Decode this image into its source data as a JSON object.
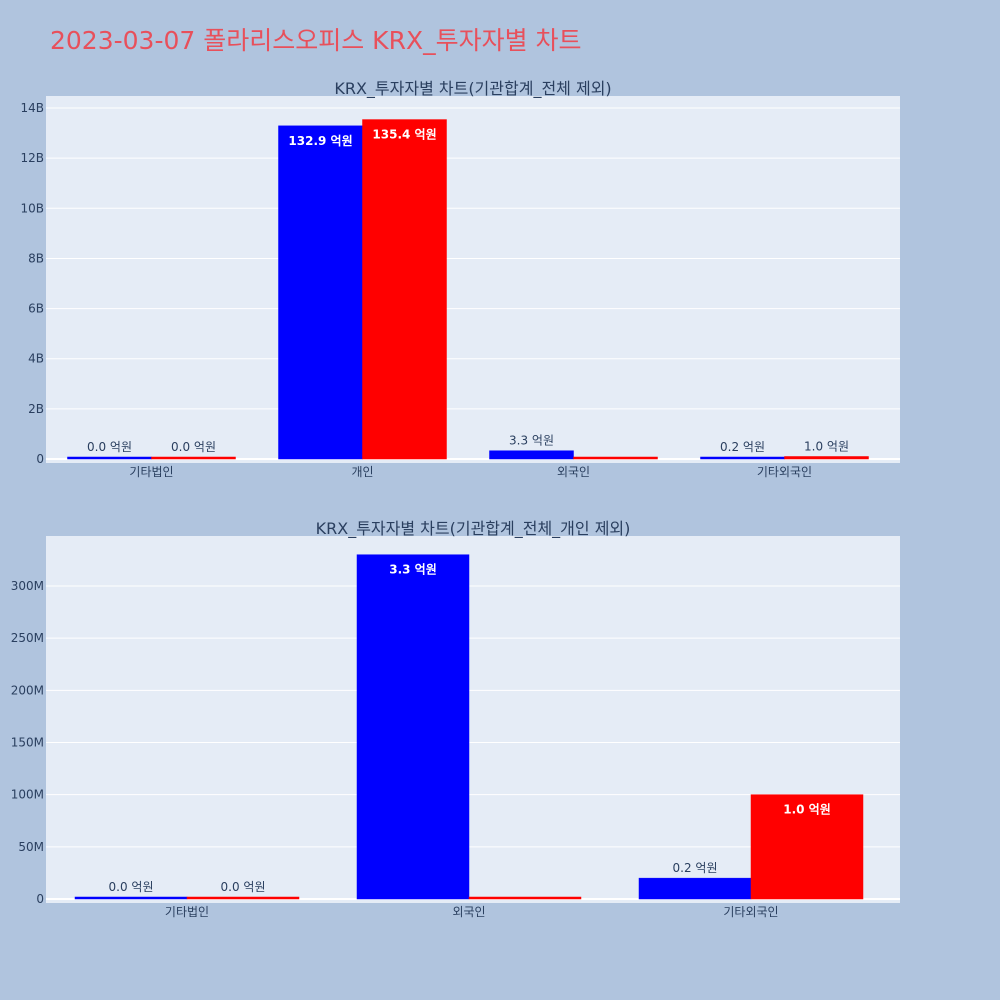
{
  "title": "2023-03-07 폴라리스오피스 KRX_투자자별 차트",
  "colors": {
    "background": "#b0c4de",
    "plot_bg": "#e5ecf6",
    "title": "#e8505b",
    "text": "#2a3f5f",
    "grid": "#ffffff",
    "series_a": "#0000ff",
    "series_b": "#ff0000"
  },
  "chart_data": [
    {
      "type": "bar",
      "title": "KRX_투자자별 차트(기관합계_전체 제외)",
      "categories": [
        "기타법인",
        "개인",
        "외국인",
        "기타외국인"
      ],
      "series": [
        {
          "color": "#0000ff",
          "values": [
            0,
            13290000000,
            330000000,
            20000000
          ],
          "labels": [
            "0.0 억원",
            "132.9 억원",
            "3.3 억원",
            "0.2 억원"
          ]
        },
        {
          "color": "#ff0000",
          "values": [
            0,
            13540000000,
            0,
            100000000
          ],
          "labels": [
            "0.0 억원",
            "135.4 억원",
            "",
            "1.0 억원"
          ]
        }
      ],
      "ylim": [
        0,
        14400000000
      ],
      "yticks": [
        0,
        2000000000,
        4000000000,
        6000000000,
        8000000000,
        10000000000,
        12000000000,
        14000000000
      ],
      "ytick_labels": [
        "0",
        "2B",
        "4B",
        "6B",
        "8B",
        "10B",
        "12B",
        "14B"
      ],
      "grid": true
    },
    {
      "type": "bar",
      "title": "KRX_투자자별 차트(기관합계_전체_개인 제외)",
      "categories": [
        "기타법인",
        "외국인",
        "기타외국인"
      ],
      "series": [
        {
          "color": "#0000ff",
          "values": [
            0,
            330000000,
            20000000
          ],
          "labels": [
            "0.0 억원",
            "3.3 억원",
            "0.2 억원"
          ]
        },
        {
          "color": "#ff0000",
          "values": [
            0,
            0,
            100000000
          ],
          "labels": [
            "0.0 억원",
            "",
            "1.0 억원"
          ]
        }
      ],
      "ylim": [
        0,
        346000000
      ],
      "yticks": [
        0,
        50000000,
        100000000,
        150000000,
        200000000,
        250000000,
        300000000
      ],
      "ytick_labels": [
        "0",
        "50M",
        "100M",
        "150M",
        "200M",
        "250M",
        "300M"
      ],
      "grid": true
    }
  ]
}
